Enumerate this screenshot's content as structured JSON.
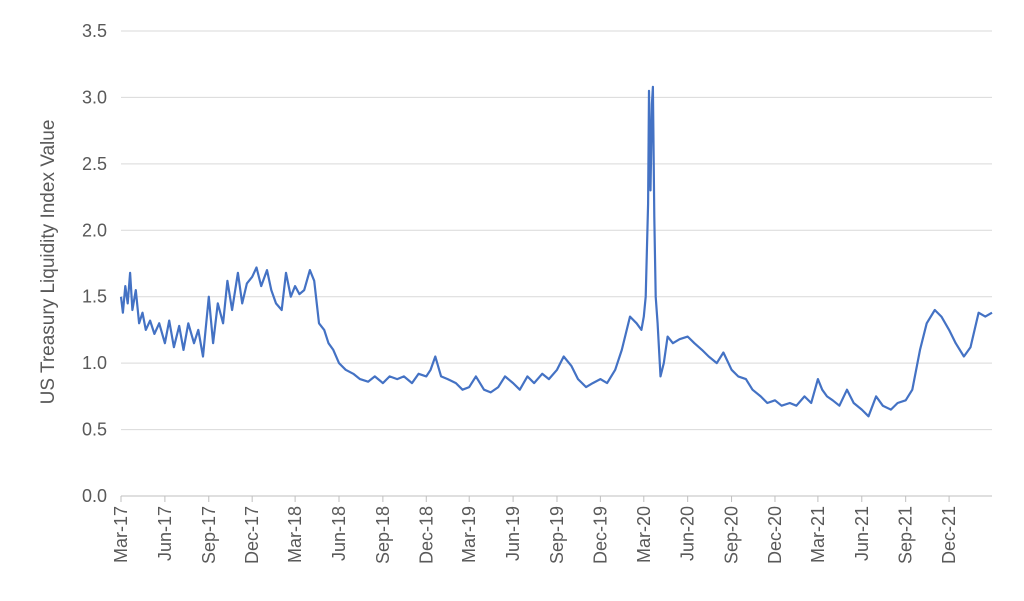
{
  "chart_data": {
    "type": "line",
    "title": "",
    "xlabel": "",
    "ylabel": "US Treasury Liquidity Index Value",
    "ylim": [
      0,
      3.5
    ],
    "yticks": [
      "0.0",
      "0.5",
      "1.0",
      "1.5",
      "2.0",
      "2.5",
      "3.0",
      "3.5"
    ],
    "xlim": [
      "2017-03-01",
      "2022-03-01"
    ],
    "xticks": [
      "Mar-17",
      "Jun-17",
      "Sep-17",
      "Dec-17",
      "Mar-18",
      "Jun-18",
      "Sep-18",
      "Dec-18",
      "Mar-19",
      "Jun-19",
      "Sep-19",
      "Dec-19",
      "Mar-20",
      "Jun-20",
      "Sep-20",
      "Dec-20",
      "Mar-21",
      "Jun-21",
      "Sep-21",
      "Dec-21"
    ],
    "grid": true,
    "legend": "none",
    "line_color": "#4472C4",
    "series": [
      {
        "x": [
          "2017-03-01",
          "2017-03-05",
          "2017-03-10",
          "2017-03-15",
          "2017-03-20",
          "2017-03-25",
          "2017-04-01",
          "2017-04-08",
          "2017-04-15",
          "2017-04-22",
          "2017-05-01",
          "2017-05-10",
          "2017-05-20",
          "2017-06-01",
          "2017-06-10",
          "2017-06-20",
          "2017-07-01",
          "2017-07-10",
          "2017-07-20",
          "2017-08-01",
          "2017-08-10",
          "2017-08-20",
          "2017-09-01",
          "2017-09-10",
          "2017-09-20",
          "2017-10-01",
          "2017-10-10",
          "2017-10-20",
          "2017-11-01",
          "2017-11-10",
          "2017-11-20",
          "2017-12-01",
          "2017-12-10",
          "2017-12-20",
          "2018-01-01",
          "2018-01-10",
          "2018-01-20",
          "2018-02-01",
          "2018-02-10",
          "2018-02-20",
          "2018-03-01",
          "2018-03-10",
          "2018-03-20",
          "2018-04-01",
          "2018-04-10",
          "2018-04-20",
          "2018-05-01",
          "2018-05-10",
          "2018-05-20",
          "2018-06-01",
          "2018-06-15",
          "2018-07-01",
          "2018-07-15",
          "2018-08-01",
          "2018-08-15",
          "2018-09-01",
          "2018-09-15",
          "2018-10-01",
          "2018-10-15",
          "2018-11-01",
          "2018-11-15",
          "2018-12-01",
          "2018-12-10",
          "2018-12-20",
          "2019-01-01",
          "2019-01-15",
          "2019-02-01",
          "2019-02-15",
          "2019-03-01",
          "2019-03-15",
          "2019-04-01",
          "2019-04-15",
          "2019-05-01",
          "2019-05-15",
          "2019-06-01",
          "2019-06-15",
          "2019-07-01",
          "2019-07-15",
          "2019-08-01",
          "2019-08-15",
          "2019-09-01",
          "2019-09-15",
          "2019-10-01",
          "2019-10-15",
          "2019-11-01",
          "2019-11-15",
          "2019-12-01",
          "2019-12-15",
          "2020-01-01",
          "2020-01-15",
          "2020-02-01",
          "2020-02-15",
          "2020-02-25",
          "2020-03-01",
          "2020-03-05",
          "2020-03-10",
          "2020-03-12",
          "2020-03-15",
          "2020-03-18",
          "2020-03-20",
          "2020-03-23",
          "2020-03-26",
          "2020-03-30",
          "2020-04-05",
          "2020-04-12",
          "2020-04-20",
          "2020-05-01",
          "2020-05-15",
          "2020-06-01",
          "2020-06-15",
          "2020-07-01",
          "2020-07-15",
          "2020-08-01",
          "2020-08-15",
          "2020-09-01",
          "2020-09-15",
          "2020-10-01",
          "2020-10-15",
          "2020-11-01",
          "2020-11-15",
          "2020-12-01",
          "2020-12-15",
          "2021-01-01",
          "2021-01-15",
          "2021-02-01",
          "2021-02-15",
          "2021-03-01",
          "2021-03-10",
          "2021-03-20",
          "2021-04-01",
          "2021-04-15",
          "2021-05-01",
          "2021-05-15",
          "2021-06-01",
          "2021-06-15",
          "2021-07-01",
          "2021-07-15",
          "2021-08-01",
          "2021-08-15",
          "2021-09-01",
          "2021-09-15",
          "2021-10-01",
          "2021-10-15",
          "2021-11-01",
          "2021-11-15",
          "2021-12-01",
          "2021-12-15",
          "2022-01-01",
          "2022-01-15",
          "2022-02-01",
          "2022-02-15",
          "2022-03-01"
        ],
        "y": [
          1.5,
          1.38,
          1.58,
          1.45,
          1.68,
          1.4,
          1.55,
          1.3,
          1.38,
          1.25,
          1.32,
          1.22,
          1.3,
          1.15,
          1.32,
          1.12,
          1.28,
          1.1,
          1.3,
          1.15,
          1.25,
          1.05,
          1.5,
          1.15,
          1.45,
          1.3,
          1.62,
          1.4,
          1.68,
          1.45,
          1.6,
          1.65,
          1.72,
          1.58,
          1.7,
          1.55,
          1.45,
          1.4,
          1.68,
          1.5,
          1.58,
          1.52,
          1.55,
          1.7,
          1.62,
          1.3,
          1.25,
          1.15,
          1.1,
          1.0,
          0.95,
          0.92,
          0.88,
          0.86,
          0.9,
          0.85,
          0.9,
          0.88,
          0.9,
          0.85,
          0.92,
          0.9,
          0.95,
          1.05,
          0.9,
          0.88,
          0.85,
          0.8,
          0.82,
          0.9,
          0.8,
          0.78,
          0.82,
          0.9,
          0.85,
          0.8,
          0.9,
          0.85,
          0.92,
          0.88,
          0.95,
          1.05,
          0.98,
          0.88,
          0.82,
          0.85,
          0.88,
          0.85,
          0.95,
          1.1,
          1.35,
          1.3,
          1.25,
          1.35,
          1.5,
          2.2,
          3.05,
          2.3,
          2.95,
          3.08,
          2.1,
          1.5,
          1.3,
          0.9,
          1.0,
          1.2,
          1.15,
          1.18,
          1.2,
          1.15,
          1.1,
          1.05,
          1.0,
          1.08,
          0.95,
          0.9,
          0.88,
          0.8,
          0.75,
          0.7,
          0.72,
          0.68,
          0.7,
          0.68,
          0.75,
          0.7,
          0.88,
          0.8,
          0.75,
          0.72,
          0.68,
          0.8,
          0.7,
          0.65,
          0.6,
          0.75,
          0.68,
          0.65,
          0.7,
          0.72,
          0.8,
          1.1,
          1.3,
          1.4,
          1.35,
          1.25,
          1.15,
          1.05,
          1.12,
          1.38,
          1.35,
          1.38
        ]
      }
    ]
  }
}
